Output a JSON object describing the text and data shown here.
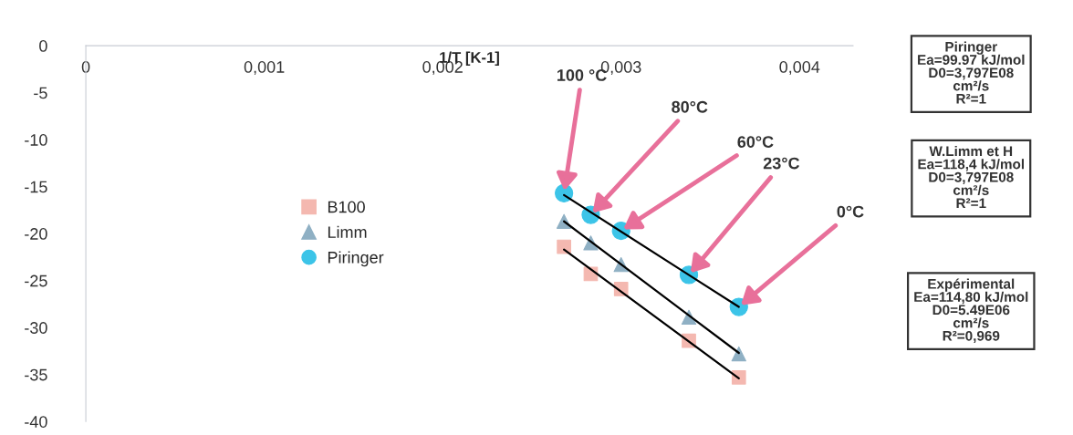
{
  "chart_data": {
    "type": "scatter",
    "xlabel": "1/T [K-1]",
    "xlim": [
      0,
      0.0043
    ],
    "xticks": [
      {
        "value": 0,
        "label": "0"
      },
      {
        "value": 0.001,
        "label": "0,001"
      },
      {
        "value": 0.002,
        "label": "0,002"
      },
      {
        "value": 0.003,
        "label": "0,003"
      },
      {
        "value": 0.004,
        "label": "0,004"
      }
    ],
    "ylim": [
      -40,
      0
    ],
    "yticks": [
      0,
      -5,
      -10,
      -15,
      -20,
      -25,
      -30,
      -35,
      -40
    ],
    "grid": false,
    "legend": "center",
    "series": [
      {
        "name": "B100",
        "color": "#f4b8b0",
        "marker": "square",
        "x": [
          0.00268,
          0.00283,
          0.003,
          0.00338,
          0.00366
        ],
        "values": [
          -21.4,
          -24.3,
          -25.9,
          -31.4,
          -35.3
        ]
      },
      {
        "name": "Limm",
        "color": "#8fb0c4",
        "marker": "triangle",
        "x": [
          0.00268,
          0.00283,
          0.003,
          0.00338,
          0.00366
        ],
        "values": [
          -18.7,
          -21.0,
          -23.3,
          -28.9,
          -32.8
        ]
      },
      {
        "name": "Piringer",
        "color": "#3cc4e8",
        "marker": "circle",
        "x": [
          0.00268,
          0.00283,
          0.003,
          0.00338,
          0.00366
        ],
        "values": [
          -15.7,
          -18.0,
          -19.7,
          -24.4,
          -27.8
        ]
      },
      {
        "type": "line",
        "color": "#000000",
        "marker": "none",
        "x": [
          0.00268,
          0.00366
        ],
        "values": [
          -21.7,
          -35.4
        ]
      },
      {
        "type": "line",
        "color": "#000000",
        "marker": "none",
        "x": [
          0.00268,
          0.00366
        ],
        "values": [
          -18.7,
          -32.7
        ]
      },
      {
        "type": "line",
        "color": "#000000",
        "marker": "none",
        "x": [
          0.00268,
          0.00366
        ],
        "values": [
          -15.9,
          -27.8
        ]
      }
    ],
    "annotations": [
      {
        "text": "100 °C",
        "x": 0.00268,
        "y": -15.7
      },
      {
        "text": "80°C",
        "x": 0.00283,
        "y": -18.0
      },
      {
        "text": "60°C",
        "x": 0.003,
        "y": -19.7
      },
      {
        "text": "23°C",
        "x": 0.00338,
        "y": -24.4
      },
      {
        "text": "0°C",
        "x": 0.00366,
        "y": -27.8
      },
      "Piringer\nEa=99.97 kJ/mol\nD0=3,797E08\ncm²/s\nR²=1",
      "W.Limm et H\nEa=118,4 kJ/mol\nD0=3,797E08\ncm²/s\nR²=1",
      "Expérimental\nEa=114,80 kJ/mol\nD0=5.49E06\ncm²/s\nR²=0,969"
    ]
  }
}
